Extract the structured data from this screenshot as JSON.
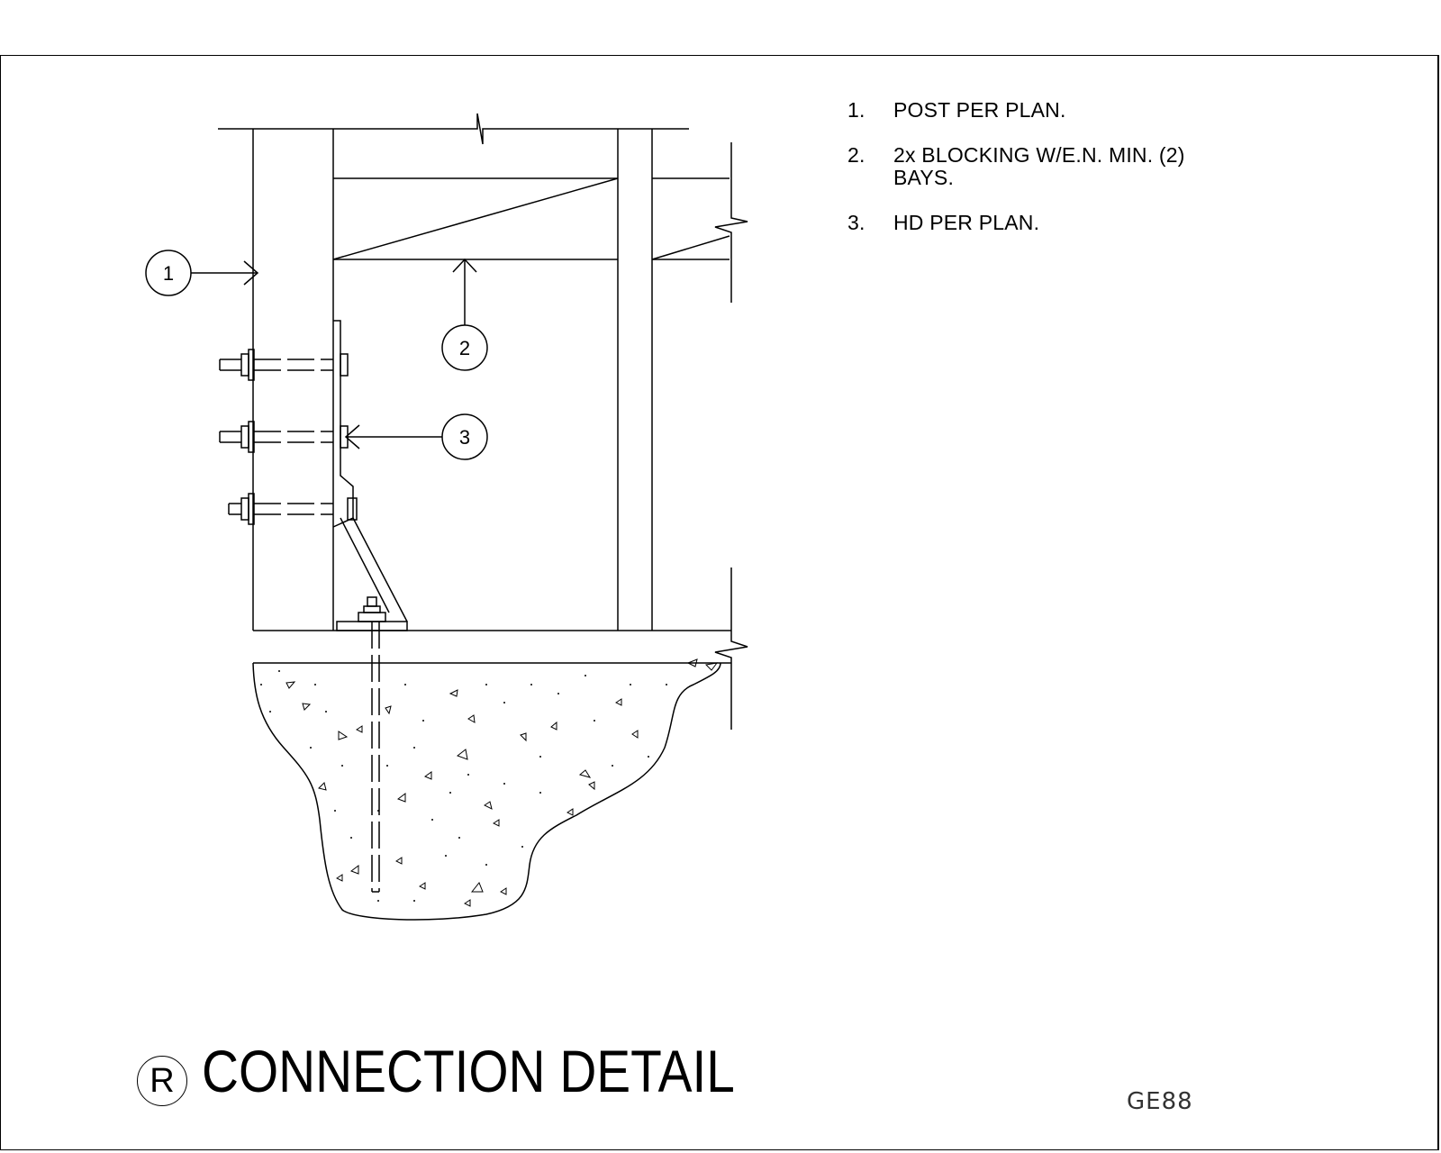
{
  "notes": [
    {
      "num": "1.",
      "text": "POST PER PLAN."
    },
    {
      "num": "2.",
      "text": "2x BLOCKING W/E.N. MIN. (2)\nBAYS."
    },
    {
      "num": "3.",
      "text": "HD PER PLAN."
    }
  ],
  "callouts": {
    "c1": "1",
    "c2": "2",
    "c3": "3"
  },
  "title": {
    "mark": "R",
    "text": "CONNECTION DETAIL"
  },
  "sheet_code": "GE88"
}
